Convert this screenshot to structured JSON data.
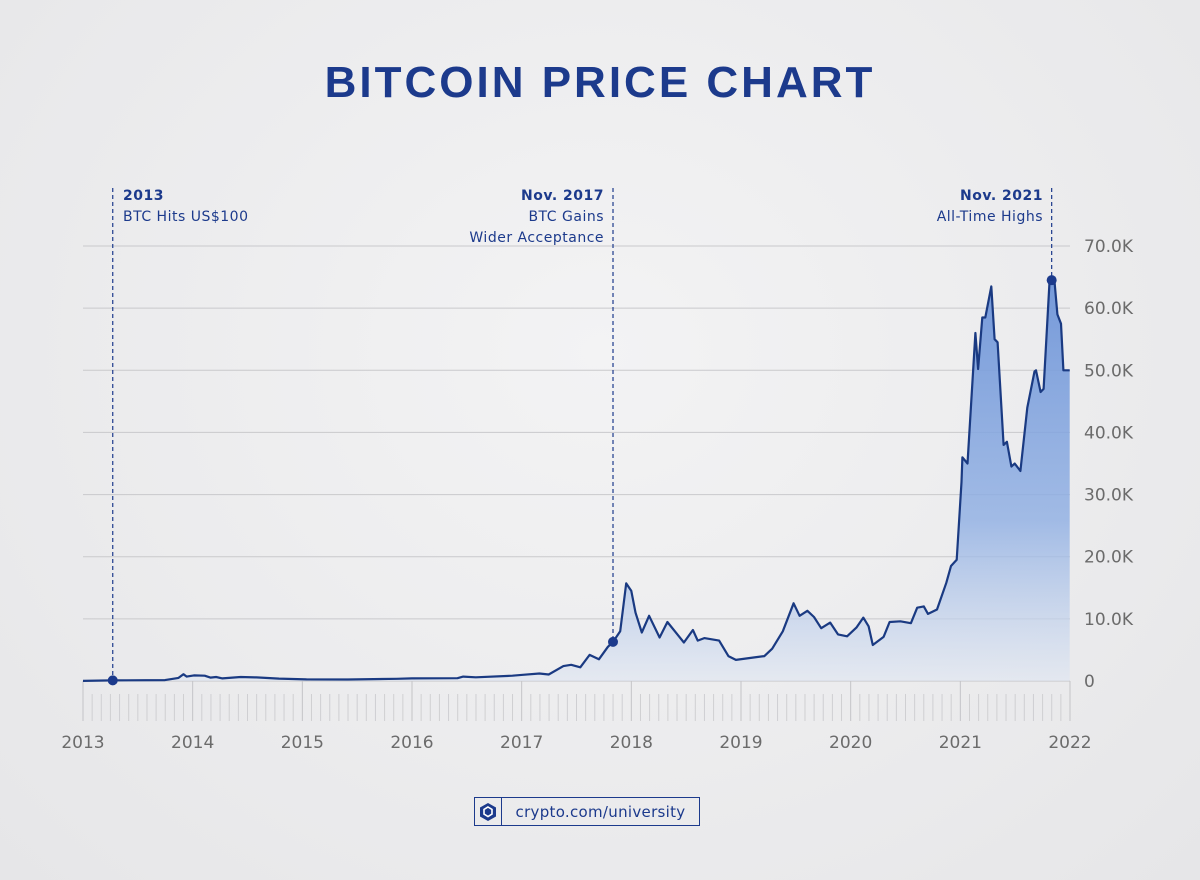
{
  "colors": {
    "accent": "#1c3a8c",
    "line": "#1a3a82",
    "fill_top": "#6f95d8",
    "fill_bottom": "#e4e9f2",
    "grid": "#c9c9cc",
    "tick_label": "#6b6b6b"
  },
  "chart_data": {
    "type": "area",
    "title": "BITCOIN PRICE CHART",
    "xlabel": "",
    "ylabel": "",
    "xlim": [
      "2013-01-01",
      "2022-01-01"
    ],
    "ylim": [
      0,
      70000
    ],
    "x_ticks": [
      "2013",
      "2014",
      "2015",
      "2016",
      "2017",
      "2018",
      "2019",
      "2020",
      "2021",
      "2022"
    ],
    "y_ticks": [
      {
        "value": 0,
        "label": "0"
      },
      {
        "value": 10000,
        "label": "10.0K"
      },
      {
        "value": 20000,
        "label": "20.0K"
      },
      {
        "value": 30000,
        "label": "30.0K"
      },
      {
        "value": 40000,
        "label": "40.0K"
      },
      {
        "value": 50000,
        "label": "50.0K"
      },
      {
        "value": 60000,
        "label": "60.0K"
      },
      {
        "value": 70000,
        "label": "70.0K"
      }
    ],
    "grid": "horizontal",
    "series": [
      {
        "points": [
          [
            "2013-01-01",
            13
          ],
          [
            "2013-04-10",
            100
          ],
          [
            "2013-10-01",
            150
          ],
          [
            "2013-11-15",
            500
          ],
          [
            "2013-12-01",
            1100
          ],
          [
            "2013-12-12",
            700
          ],
          [
            "2014-01-05",
            900
          ],
          [
            "2014-02-10",
            850
          ],
          [
            "2014-03-01",
            550
          ],
          [
            "2014-03-20",
            650
          ],
          [
            "2014-04-10",
            420
          ],
          [
            "2014-06-10",
            650
          ],
          [
            "2014-08-01",
            580
          ],
          [
            "2014-10-15",
            380
          ],
          [
            "2015-01-15",
            250
          ],
          [
            "2015-06-01",
            240
          ],
          [
            "2015-11-10",
            360
          ],
          [
            "2016-01-01",
            420
          ],
          [
            "2016-06-01",
            450
          ],
          [
            "2016-06-20",
            700
          ],
          [
            "2016-08-01",
            600
          ],
          [
            "2016-12-01",
            850
          ],
          [
            "2017-01-05",
            1000
          ],
          [
            "2017-03-01",
            1200
          ],
          [
            "2017-04-01",
            1050
          ],
          [
            "2017-05-20",
            2400
          ],
          [
            "2017-06-15",
            2600
          ],
          [
            "2017-07-15",
            2200
          ],
          [
            "2017-08-15",
            4200
          ],
          [
            "2017-09-15",
            3500
          ],
          [
            "2017-10-15",
            5500
          ],
          [
            "2017-11-01",
            6300
          ],
          [
            "2017-11-25",
            8000
          ],
          [
            "2017-12-15",
            15700
          ],
          [
            "2018-01-01",
            14500
          ],
          [
            "2018-01-15",
            11000
          ],
          [
            "2018-02-05",
            7800
          ],
          [
            "2018-03-01",
            10500
          ],
          [
            "2018-04-05",
            7000
          ],
          [
            "2018-05-01",
            9500
          ],
          [
            "2018-06-25",
            6200
          ],
          [
            "2018-07-25",
            8200
          ],
          [
            "2018-08-10",
            6500
          ],
          [
            "2018-09-01",
            6900
          ],
          [
            "2018-10-20",
            6500
          ],
          [
            "2018-11-20",
            4000
          ],
          [
            "2018-12-15",
            3400
          ],
          [
            "2019-01-15",
            3600
          ],
          [
            "2019-02-15",
            3800
          ],
          [
            "2019-03-20",
            4000
          ],
          [
            "2019-04-15",
            5200
          ],
          [
            "2019-05-20",
            8000
          ],
          [
            "2019-06-25",
            12500
          ],
          [
            "2019-07-15",
            10500
          ],
          [
            "2019-08-10",
            11300
          ],
          [
            "2019-09-01",
            10300
          ],
          [
            "2019-09-25",
            8500
          ],
          [
            "2019-10-25",
            9400
          ],
          [
            "2019-11-20",
            7500
          ],
          [
            "2019-12-20",
            7200
          ],
          [
            "2020-01-20",
            8600
          ],
          [
            "2020-02-12",
            10200
          ],
          [
            "2020-03-01",
            8800
          ],
          [
            "2020-03-15",
            5800
          ],
          [
            "2020-04-20",
            7100
          ],
          [
            "2020-05-10",
            9500
          ],
          [
            "2020-06-15",
            9600
          ],
          [
            "2020-07-20",
            9300
          ],
          [
            "2020-08-10",
            11800
          ],
          [
            "2020-09-01",
            12000
          ],
          [
            "2020-09-15",
            10800
          ],
          [
            "2020-10-15",
            11500
          ],
          [
            "2020-11-15",
            15800
          ],
          [
            "2020-12-01",
            18500
          ],
          [
            "2020-12-20",
            19500
          ],
          [
            "2021-01-05",
            32000
          ],
          [
            "2021-01-08",
            36000
          ],
          [
            "2021-01-25",
            35000
          ],
          [
            "2021-02-20",
            56000
          ],
          [
            "2021-03-01",
            50200
          ],
          [
            "2021-03-15",
            58500
          ],
          [
            "2021-03-25",
            58500
          ],
          [
            "2021-04-14",
            63500
          ],
          [
            "2021-04-25",
            55000
          ],
          [
            "2021-05-05",
            54500
          ],
          [
            "2021-05-25",
            38000
          ],
          [
            "2021-06-05",
            38500
          ],
          [
            "2021-06-20",
            34500
          ],
          [
            "2021-07-01",
            35000
          ],
          [
            "2021-07-20",
            33800
          ],
          [
            "2021-08-12",
            44000
          ],
          [
            "2021-09-05",
            49800
          ],
          [
            "2021-09-10",
            50000
          ],
          [
            "2021-09-25",
            46500
          ],
          [
            "2021-10-05",
            47000
          ],
          [
            "2021-10-25",
            64500
          ],
          [
            "2021-11-10",
            64500
          ],
          [
            "2021-11-20",
            59000
          ],
          [
            "2021-12-02",
            57500
          ],
          [
            "2021-12-10",
            50000
          ],
          [
            "2021-12-31",
            50000
          ]
        ]
      }
    ],
    "annotations": [
      {
        "date": "2013-04-10",
        "value": 100,
        "heading": "2013",
        "text": [
          "BTC Hits US$100"
        ]
      },
      {
        "date": "2017-11-01",
        "value": 6300,
        "heading": "Nov. 2017",
        "text": [
          "BTC Gains",
          "Wider Acceptance"
        ]
      },
      {
        "date": "2021-11-01",
        "value": 64500,
        "heading": "Nov. 2021",
        "text": [
          "All-Time Highs"
        ]
      }
    ]
  },
  "footer": {
    "brand_url": "crypto.com/university",
    "logo_icon": "crypto-com-shield-logo"
  }
}
